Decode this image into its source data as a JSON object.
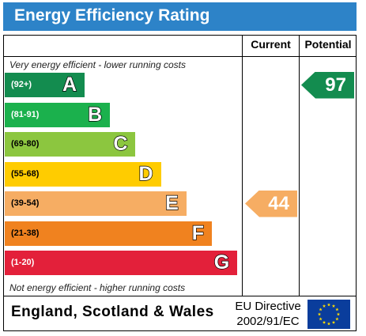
{
  "title": "Energy Efficiency Rating",
  "columns": {
    "current": "Current",
    "potential": "Potential"
  },
  "notes": {
    "top": "Very energy efficient - lower running costs",
    "bottom": "Not energy efficient - higher running costs"
  },
  "footer": {
    "region": "England, Scotland & Wales",
    "directive_line1": "EU Directive",
    "directive_line2": "2002/91/EC"
  },
  "chart_data": {
    "type": "bar",
    "categories": [
      "A",
      "B",
      "C",
      "D",
      "E",
      "F",
      "G"
    ],
    "ranges": [
      "(92+)",
      "(81-91)",
      "(69-80)",
      "(55-68)",
      "(39-54)",
      "(21-38)",
      "(1-20)"
    ],
    "colors": [
      "#138c4f",
      "#1bb14d",
      "#8cc63f",
      "#ffcc00",
      "#f6ad63",
      "#f0821f",
      "#e3203a"
    ],
    "range_text_colors": [
      "#ffffff",
      "#ffffff",
      "#000000",
      "#000000",
      "#000000",
      "#000000",
      "#ffffff"
    ],
    "ratings": [
      {
        "column": "current",
        "value": "44",
        "band": "E",
        "color": "#f6ad63"
      },
      {
        "column": "potential",
        "value": "97",
        "band": "A",
        "color": "#138c4f"
      }
    ]
  }
}
